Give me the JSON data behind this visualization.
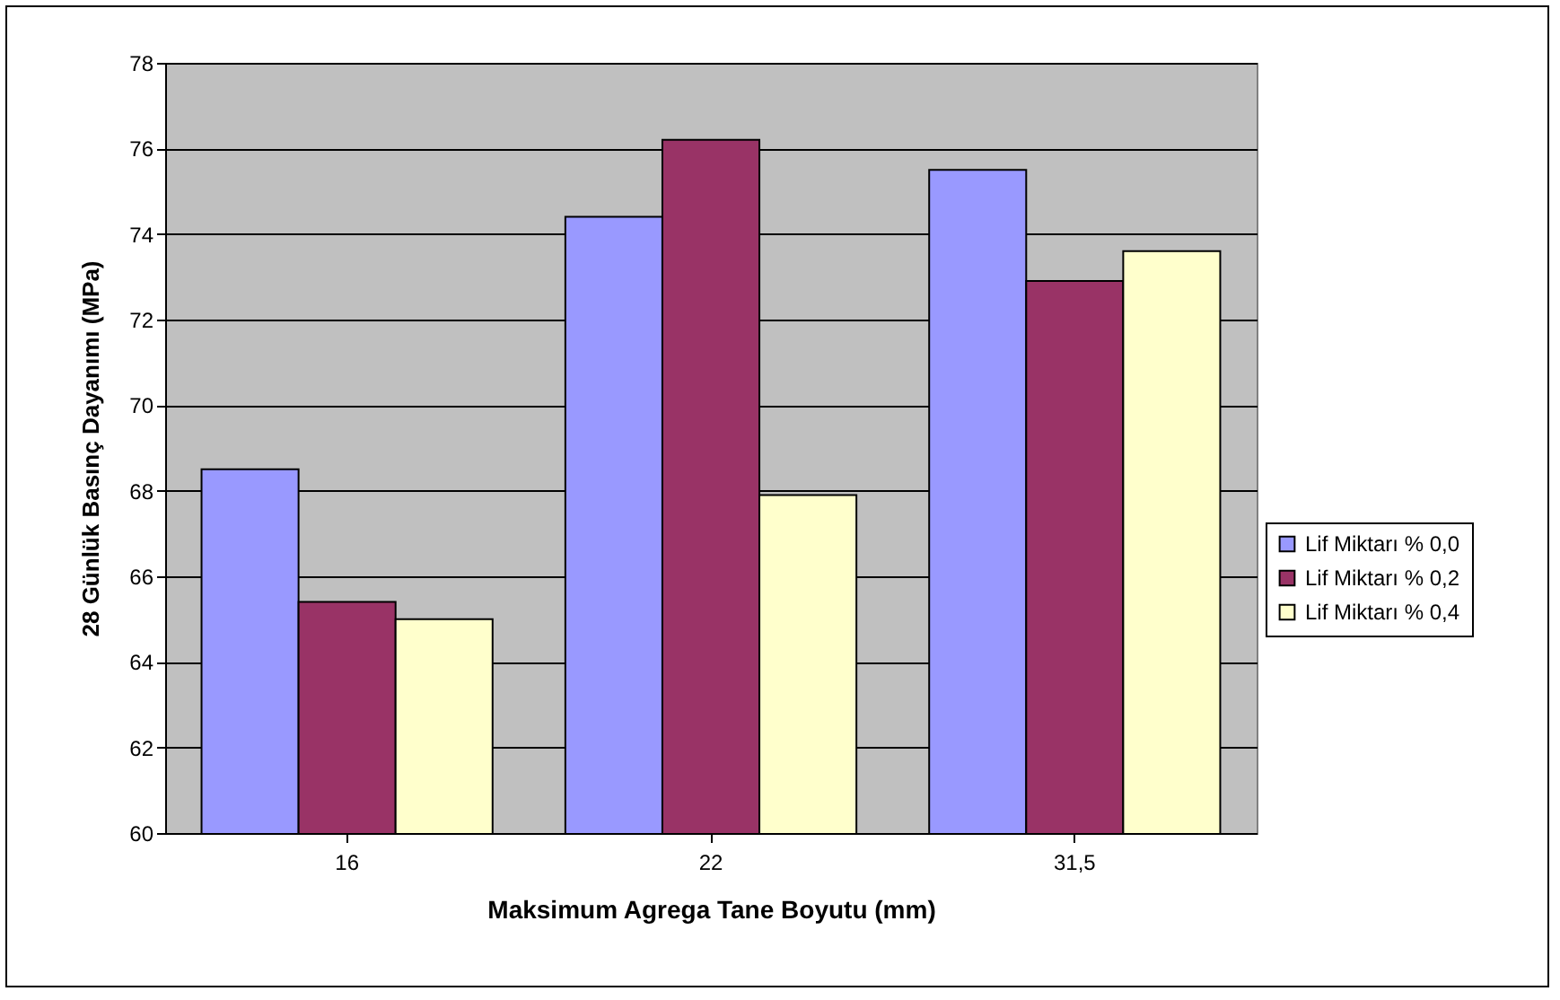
{
  "chart_data": {
    "type": "bar",
    "xlabel": "Maksimum Agrega Tane Boyutu (mm)",
    "ylabel": "28 Günlük Basınç Dayanımı (MPa)",
    "categories": [
      "16",
      "22",
      "31,5"
    ],
    "series": [
      {
        "name": "Lif Miktarı % 0,0",
        "color": "#9999ff",
        "values": [
          68.5,
          74.4,
          75.5
        ]
      },
      {
        "name": "Lif Miktarı % 0,2",
        "color": "#993366",
        "values": [
          65.4,
          76.2,
          72.9
        ]
      },
      {
        "name": "Lif Miktarı % 0,4",
        "color": "#ffffcc",
        "values": [
          65.0,
          67.9,
          73.6
        ]
      }
    ],
    "ylim": [
      60,
      78
    ],
    "yticks": [
      60,
      62,
      64,
      66,
      68,
      70,
      72,
      74,
      76,
      78
    ],
    "grid": "y",
    "legend": "right"
  }
}
